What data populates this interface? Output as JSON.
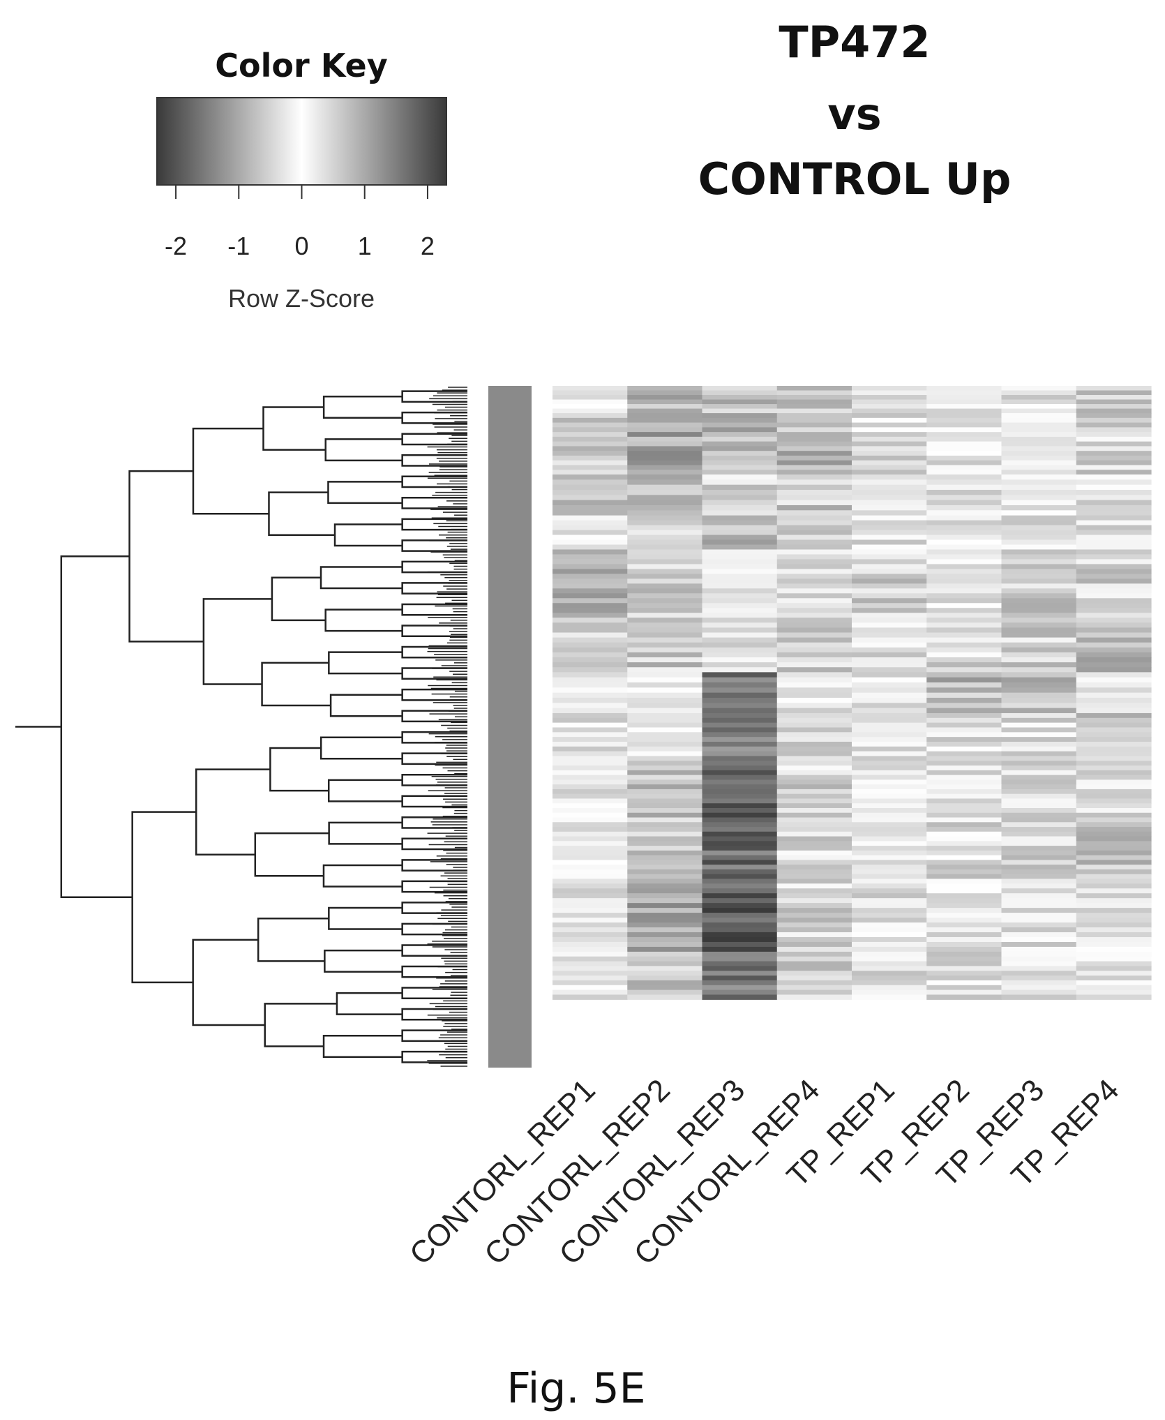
{
  "title_lines": [
    "TP472",
    "vs",
    "CONTROL Up"
  ],
  "caption": "Fig. 5E",
  "color_key": {
    "title": "Color Key",
    "xlabel": "Row Z-Score",
    "ticks": [
      "-2",
      "-1",
      "0",
      "1",
      "2"
    ],
    "range": [
      -2.3,
      2.3
    ]
  },
  "chart_data": {
    "type": "heatmap",
    "columns": [
      "CONTORL_REP1",
      "CONTORL_REP2",
      "CONTORL_REP3",
      "CONTORL_REP4",
      "TP_REP1",
      "TP_REP2",
      "TP_REP3",
      "TP_REP4"
    ],
    "zlabel": "Row Z-Score",
    "zlim": [
      -2.3,
      2.3
    ],
    "row_dendrogram": true,
    "row_blocks": [
      {
        "fraction": 0.04,
        "values": [
          0.3,
          -0.9,
          0.7,
          -0.7,
          -0.3,
          0.2,
          0.3,
          -0.7
        ]
      },
      {
        "fraction": 0.09,
        "values": [
          -0.5,
          -1.0,
          0.9,
          -0.8,
          -0.4,
          -0.3,
          0.0,
          -0.5
        ]
      },
      {
        "fraction": 0.06,
        "values": [
          -0.6,
          -0.9,
          0.5,
          -0.6,
          -0.3,
          -0.3,
          -0.1,
          -0.4
        ]
      },
      {
        "fraction": 0.05,
        "values": [
          -0.2,
          -0.4,
          -0.8,
          -0.4,
          -0.4,
          -0.2,
          -0.3,
          -0.3
        ]
      },
      {
        "fraction": 0.1,
        "values": [
          -0.8,
          -0.5,
          0.2,
          -0.3,
          -0.5,
          -0.4,
          -0.6,
          -0.5
        ]
      },
      {
        "fraction": 0.08,
        "values": [
          -0.4,
          -0.6,
          0.3,
          -0.5,
          -0.3,
          -0.4,
          -0.5,
          -0.8
        ]
      },
      {
        "fraction": 0.06,
        "values": [
          -0.2,
          0.2,
          -1.6,
          -0.3,
          -0.2,
          -0.8,
          -0.8,
          0.1
        ]
      },
      {
        "fraction": 0.07,
        "values": [
          -0.3,
          0.0,
          -1.4,
          -0.4,
          -0.3,
          -0.3,
          -0.4,
          -0.7
        ]
      },
      {
        "fraction": 0.09,
        "values": [
          -0.2,
          0.7,
          -1.8,
          0.5,
          -0.3,
          -0.3,
          -0.4,
          -0.3
        ]
      },
      {
        "fraction": 0.09,
        "values": [
          -0.3,
          0.6,
          -1.7,
          0.4,
          -0.2,
          -0.4,
          -0.5,
          -0.7
        ]
      },
      {
        "fraction": 0.1,
        "values": [
          -0.2,
          1.1,
          -1.9,
          0.5,
          -0.3,
          -0.4,
          -0.3,
          -0.2
        ]
      },
      {
        "fraction": 0.07,
        "values": [
          -0.2,
          0.7,
          -1.6,
          0.6,
          -0.3,
          -0.4,
          -0.3,
          -0.2
        ]
      }
    ]
  }
}
